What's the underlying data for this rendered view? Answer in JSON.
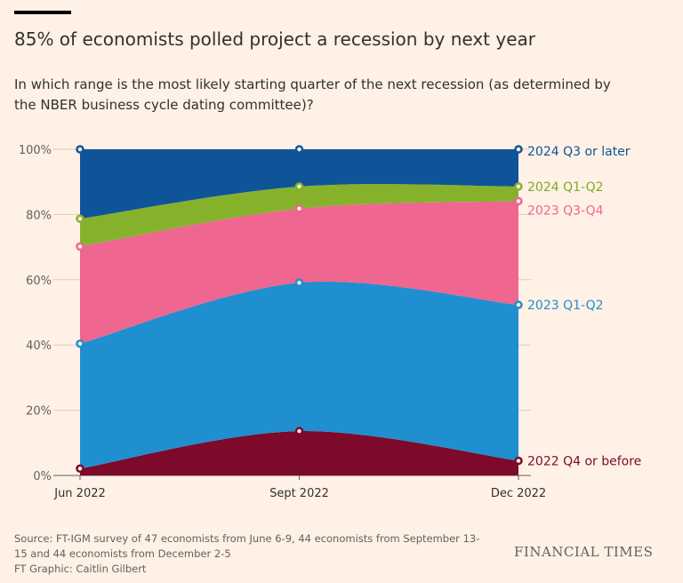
{
  "header": {
    "title": "85% of economists polled project a recession by next year",
    "subtitle": "In which range is the most likely starting quarter of the next recession (as determined by the NBER business cycle dating committee)?"
  },
  "footer": {
    "source_lines": [
      "Source: FT-IGM survey of 47 economists from June 6-9, 44 economists from September 13-",
      "15 and 44 economists from December 2-5",
      "FT Graphic: Caitlin Gilbert"
    ],
    "logo": "FINANCIAL TIMES"
  },
  "chart_data": {
    "type": "area",
    "stacked": true,
    "title": "85% of economists polled project a recession by next year",
    "xlabel": "",
    "ylabel": "",
    "categories": [
      "Jun 2022",
      "Sept 2022",
      "Dec 2022"
    ],
    "ylim": [
      0,
      100
    ],
    "yticks": [
      0,
      20,
      40,
      60,
      80,
      100
    ],
    "ytick_labels": [
      "0%",
      "20%",
      "40%",
      "60%",
      "80%",
      "100%"
    ],
    "grid": true,
    "legend": "right (direct labels)",
    "series": [
      {
        "name": "2022 Q4 or before",
        "values": [
          2.1,
          13.6,
          4.5
        ],
        "color": "#7d0a2b",
        "label_color": "#7d0a2b"
      },
      {
        "name": "2023 Q1-Q2",
        "values": [
          38.3,
          45.5,
          47.8
        ],
        "color": "#1f8fd0",
        "label_color": "#1f8fd0"
      },
      {
        "name": "2023 Q3-Q4",
        "values": [
          29.8,
          22.7,
          31.8
        ],
        "color": "#ef6690",
        "label_color": "#ef6690"
      },
      {
        "name": "2024 Q1-Q2",
        "values": [
          8.5,
          6.8,
          4.5
        ],
        "color": "#86b22b",
        "label_color": "#7ea92a"
      },
      {
        "name": "2024 Q3 or later",
        "values": [
          21.3,
          11.4,
          11.4
        ],
        "color": "#0f5499",
        "label_color": "#0f5499"
      }
    ]
  }
}
